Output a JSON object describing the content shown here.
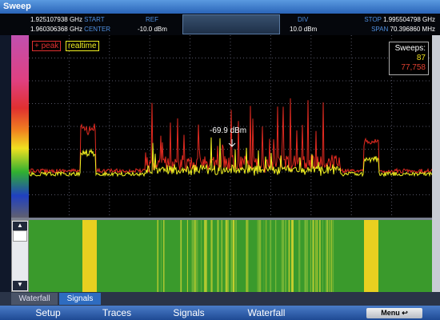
{
  "window": {
    "title": "Sweep"
  },
  "header": {
    "start": {
      "value": "1.925107938 GHz",
      "label": "START"
    },
    "center": {
      "value": "1.960306368 GHz",
      "label": "CENTER"
    },
    "ref": {
      "label": "REF",
      "value": "-10.0 dBm"
    },
    "frequency": "1.960306368 GHz",
    "div": {
      "label": "DIV",
      "value": "10.0 dBm"
    },
    "stop": {
      "label": "STOP",
      "value": "1.995504798 GHz"
    },
    "span": {
      "label": "SPAN",
      "value": "70.396860 MHz"
    }
  },
  "legend": {
    "peak": "+ peak",
    "realtime": "realtime"
  },
  "sweeps": {
    "label": "Sweeps:",
    "count": "87",
    "total": "77,758"
  },
  "marker": "-69.9 dBm",
  "tabs": [
    "Waterfall",
    "Signals"
  ],
  "toolbar": [
    "Setup",
    "Traces",
    "Signals",
    "Waterfall",
    "Menu"
  ]
}
